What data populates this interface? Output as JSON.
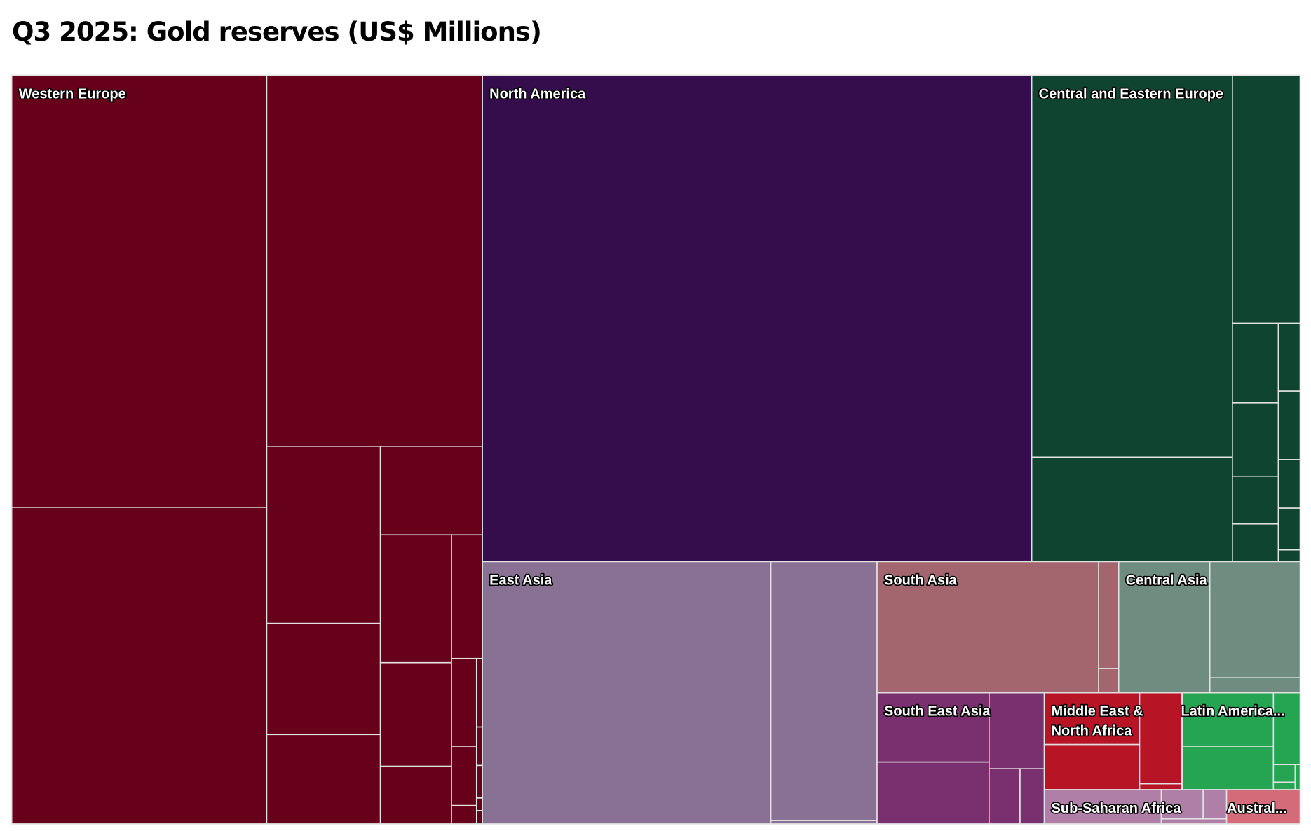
{
  "chart_data": {
    "type": "treemap",
    "title": "Q3 2025: Gold reserves (US$ Millions)",
    "regions": [
      {
        "name": "Western Europe",
        "color": "#67001b",
        "values": [
          416000,
          305000,
          302000,
          76000,
          48000,
          38000,
          34000,
          34000,
          28000,
          15000,
          14000,
          8000,
          6000,
          2000,
          1500,
          850,
          700,
          300,
          300
        ]
      },
      {
        "name": "North America",
        "color": "#350d4d",
        "values": [
          1010000
        ]
      },
      {
        "name": "Central and Eastern Europe",
        "color": "#0f4430",
        "values": [
          290000,
          79000,
          64000,
          14000,
          13000,
          8000,
          6500,
          5600,
          5600,
          4000,
          3400,
          1000
        ]
      },
      {
        "name": "East Asia",
        "color": "#887193",
        "values": [
          286000,
          104000,
          1300
        ]
      },
      {
        "name": "South Asia",
        "color": "#a3666f",
        "values": [
          110000,
          8000,
          1800
        ]
      },
      {
        "name": "Central Asia",
        "color": "#6e8c80",
        "values": [
          45000,
          40000,
          5000
        ]
      },
      {
        "name": "South East Asia",
        "color": "#7a2f6e",
        "values": [
          29000,
          26000,
          16000,
          6400,
          5000
        ]
      },
      {
        "name": "Middle East & North Africa",
        "color": "#b71426",
        "values": [
          19000,
          16000,
          14000,
          900
        ]
      },
      {
        "name": "Latin America...",
        "color": "#25a552",
        "values": [
          18000,
          15000,
          7000,
          1400,
          600,
          500
        ]
      },
      {
        "name": "Sub-Saharan Africa",
        "color": "#b07fa8",
        "values": [
          15000,
          4600,
          2600,
          1200
        ]
      },
      {
        "name": "Austral...",
        "color": "#d46b79",
        "values": [
          9500
        ]
      }
    ]
  }
}
